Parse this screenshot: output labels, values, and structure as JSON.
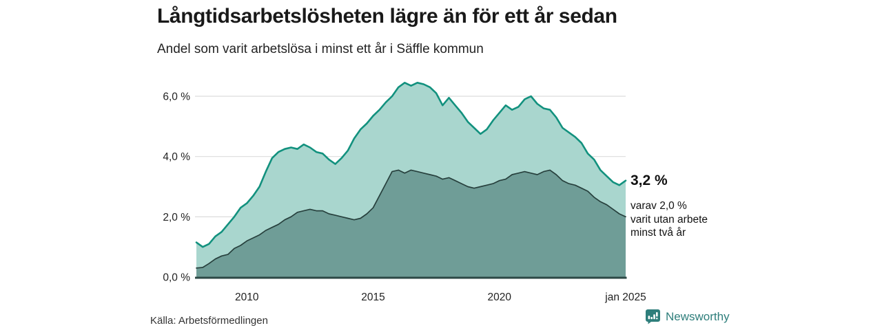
{
  "header": {
    "title": "Långtidsarbetslösheten lägre än för ett år sedan",
    "subtitle": "Andel som varit arbetslösa i minst ett år i Säffle kommun"
  },
  "footer": {
    "source": "Källa: Arbetsförmedlingen",
    "brand": "Newsworthy"
  },
  "colors": {
    "total_line": "#12917e",
    "total_fill": "#a9d6ce",
    "two_year_line": "#27403d",
    "two_year_fill": "#6f9d97",
    "baseline": "#2c4845",
    "gridline": "#dcdcdc",
    "tick_text": "#222222",
    "brand_teal": "#2e7e7b"
  },
  "chart_data": {
    "type": "area",
    "title": "Långtidsarbetslösheten lägre än för ett år sedan",
    "subtitle": "Andel som varit arbetslösa i minst ett år i Säffle kommun",
    "xlabel": "",
    "ylabel": "",
    "grid": true,
    "legend_position": "none",
    "xlim": [
      2008,
      2025
    ],
    "ylim": [
      0,
      6.6
    ],
    "x": [
      2008,
      2008.25,
      2008.5,
      2008.75,
      2009,
      2009.25,
      2009.5,
      2009.75,
      2010,
      2010.25,
      2010.5,
      2010.75,
      2011,
      2011.25,
      2011.5,
      2011.75,
      2012,
      2012.25,
      2012.5,
      2012.75,
      2013,
      2013.25,
      2013.5,
      2013.75,
      2014,
      2014.25,
      2014.5,
      2014.75,
      2015,
      2015.25,
      2015.5,
      2015.75,
      2016,
      2016.25,
      2016.5,
      2016.75,
      2017,
      2017.25,
      2017.5,
      2017.75,
      2018,
      2018.25,
      2018.5,
      2018.75,
      2019,
      2019.25,
      2019.5,
      2019.75,
      2020,
      2020.25,
      2020.5,
      2020.75,
      2021,
      2021.25,
      2021.5,
      2021.75,
      2022,
      2022.25,
      2022.5,
      2022.75,
      2023,
      2023.25,
      2023.5,
      2023.75,
      2024,
      2024.25,
      2024.5,
      2024.75,
      2025
    ],
    "series": [
      {
        "name": "Andel arbetslösa minst ett år",
        "unit": "%",
        "end_value": 3.2,
        "values": [
          1.15,
          1.0,
          1.1,
          1.35,
          1.5,
          1.75,
          2.0,
          2.3,
          2.45,
          2.7,
          3.0,
          3.5,
          3.95,
          4.15,
          4.25,
          4.3,
          4.25,
          4.4,
          4.3,
          4.15,
          4.1,
          3.9,
          3.75,
          3.95,
          4.2,
          4.6,
          4.9,
          5.1,
          5.35,
          5.55,
          5.8,
          6.0,
          6.3,
          6.45,
          6.35,
          6.45,
          6.4,
          6.3,
          6.1,
          5.7,
          5.95,
          5.7,
          5.45,
          5.15,
          4.95,
          4.75,
          4.9,
          5.2,
          5.45,
          5.7,
          5.55,
          5.65,
          5.9,
          6.0,
          5.75,
          5.6,
          5.55,
          5.3,
          4.95,
          4.8,
          4.65,
          4.45,
          4.1,
          3.9,
          3.55,
          3.35,
          3.15,
          3.05,
          3.2
        ]
      },
      {
        "name": "varav utan arbete minst två år",
        "unit": "%",
        "end_value": 2.0,
        "values": [
          0.3,
          0.32,
          0.45,
          0.6,
          0.7,
          0.75,
          0.95,
          1.05,
          1.2,
          1.3,
          1.4,
          1.55,
          1.65,
          1.75,
          1.9,
          2.0,
          2.15,
          2.2,
          2.25,
          2.2,
          2.2,
          2.1,
          2.05,
          2.0,
          1.95,
          1.9,
          1.95,
          2.1,
          2.3,
          2.7,
          3.1,
          3.5,
          3.55,
          3.45,
          3.55,
          3.5,
          3.45,
          3.4,
          3.35,
          3.25,
          3.3,
          3.2,
          3.1,
          3.0,
          2.95,
          3.0,
          3.05,
          3.1,
          3.2,
          3.25,
          3.4,
          3.45,
          3.5,
          3.45,
          3.4,
          3.5,
          3.55,
          3.4,
          3.2,
          3.1,
          3.05,
          2.95,
          2.85,
          2.65,
          2.5,
          2.4,
          2.25,
          2.1,
          2.0
        ]
      }
    ],
    "yticks": [
      {
        "value": 0,
        "label": "0,0 %"
      },
      {
        "value": 2,
        "label": "2,0 %"
      },
      {
        "value": 4,
        "label": "4,0 %"
      },
      {
        "value": 6,
        "label": "6,0 %"
      }
    ],
    "xticks": [
      {
        "value": 2010,
        "label": "2010"
      },
      {
        "value": 2015,
        "label": "2015"
      },
      {
        "value": 2020,
        "label": "2020"
      },
      {
        "value": 2025,
        "label": "jan 2025"
      }
    ],
    "annotations": {
      "end_value_label": "3,2 %",
      "detail_lines": [
        "varav 2,0 %",
        "varit utan arbete",
        "minst två år"
      ]
    }
  }
}
